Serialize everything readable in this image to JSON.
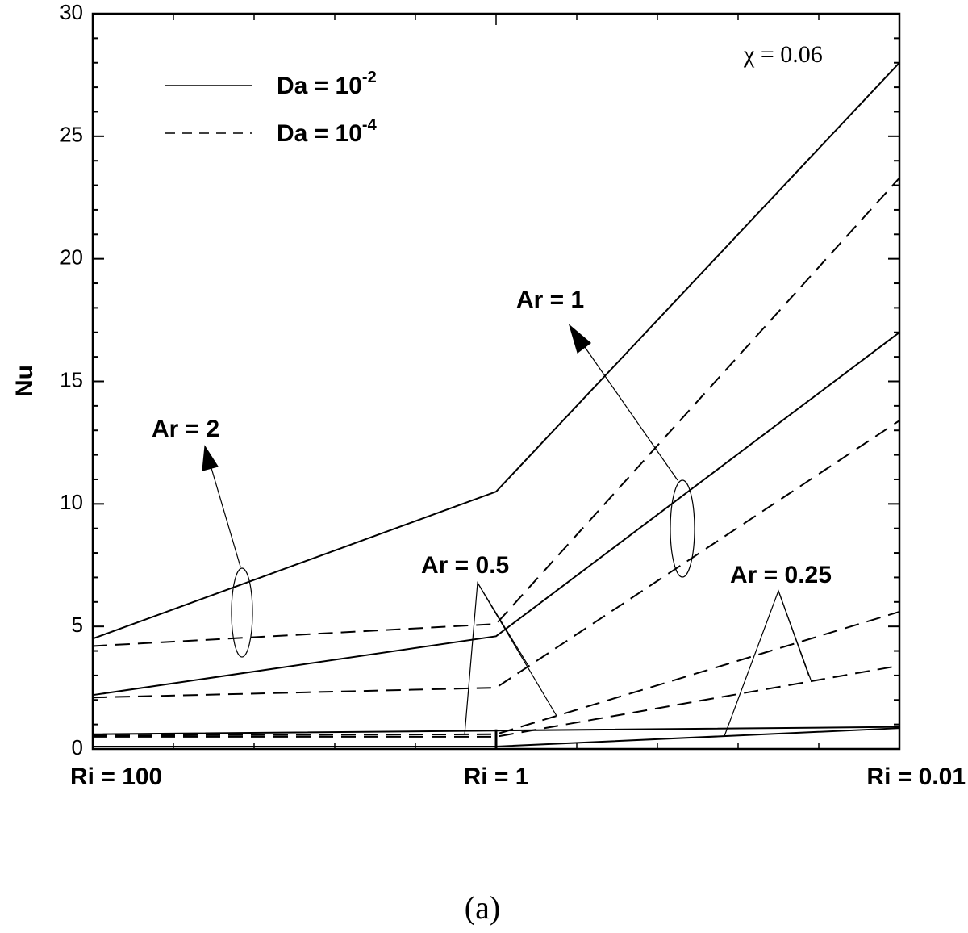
{
  "chart_data": {
    "type": "line",
    "title": "",
    "xlabel": "",
    "ylabel": "Nu",
    "ylim": [
      0,
      30
    ],
    "yticks": [
      "0",
      "5",
      "10",
      "15",
      "20",
      "25",
      "30"
    ],
    "categories": [
      "Ri = 100",
      "Ri = 1",
      "Ri = 0.01"
    ],
    "x": [
      0,
      1,
      2
    ],
    "grid": false,
    "legend_position": "top-left",
    "legend": [
      {
        "base": "Da = 10",
        "exp": "-2",
        "style": "solid"
      },
      {
        "base": "Da = 10",
        "exp": "-4",
        "style": "dashed"
      }
    ],
    "parameter_label": "χ = 0.06",
    "series": [
      {
        "group": "Ar = 2",
        "style": "solid",
        "values": [
          4.5,
          10.5,
          28.0
        ]
      },
      {
        "group": "Ar = 2",
        "style": "dashed",
        "values": [
          4.2,
          5.1,
          23.3
        ]
      },
      {
        "group": "Ar = 1",
        "style": "solid",
        "values": [
          2.2,
          4.6,
          17.0
        ]
      },
      {
        "group": "Ar = 1",
        "style": "dashed",
        "values": [
          2.1,
          2.5,
          13.4
        ]
      },
      {
        "group": "Ar = 0.5",
        "style": "solid",
        "values": [
          0.6,
          0.75,
          0.9
        ]
      },
      {
        "group": "Ar = 0.5",
        "style": "dashed",
        "values": [
          0.55,
          0.6,
          5.6
        ]
      },
      {
        "group": "Ar = 0.25",
        "style": "solid",
        "values": [
          0.1,
          0.1,
          0.85
        ]
      },
      {
        "group": "Ar = 0.25",
        "style": "dashed",
        "values": [
          0.5,
          0.5,
          3.4
        ]
      }
    ],
    "annotations": [
      "Ar = 2",
      "Ar = 1",
      "Ar = 0.5",
      "Ar = 0.25"
    ]
  },
  "caption": "(a)"
}
